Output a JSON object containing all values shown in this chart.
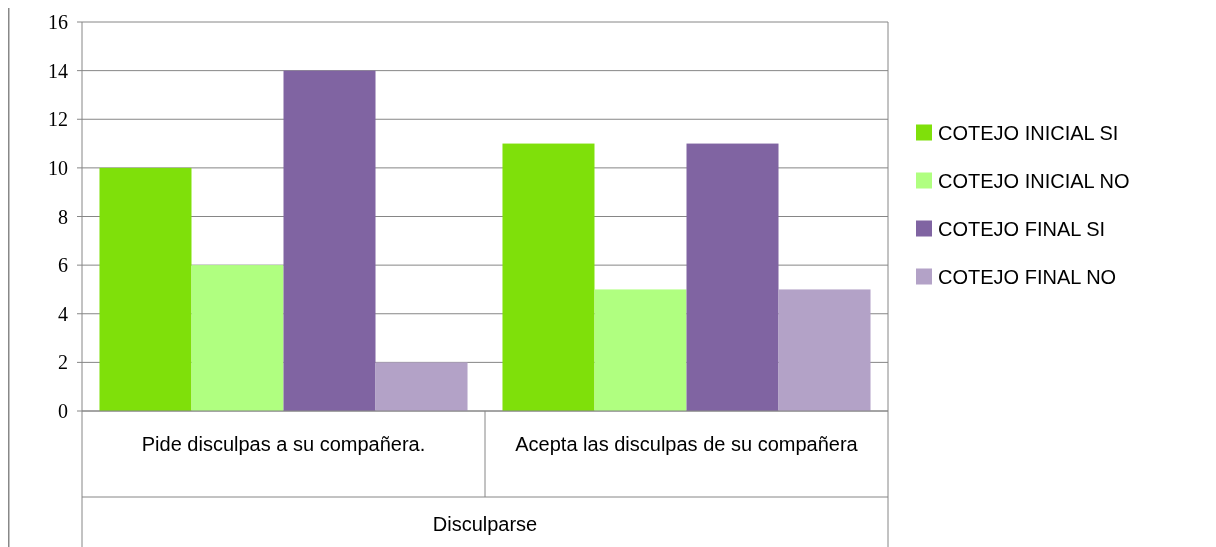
{
  "chart_data": {
    "type": "bar",
    "xlabel": "Disculparse",
    "categories": [
      "Pide disculpas a su compañera.",
      "Acepta las disculpas de su compañera"
    ],
    "series": [
      {
        "name": "COTEJO INICIAL SI",
        "color": "#7fe00a",
        "values": [
          10,
          11
        ]
      },
      {
        "name": "COTEJO INICIAL NO",
        "color": "#b0ff80",
        "values": [
          6,
          5
        ]
      },
      {
        "name": "COTEJO FINAL SI",
        "color": "#8064a2",
        "values": [
          14,
          11
        ]
      },
      {
        "name": "COTEJO FINAL NO",
        "color": "#b3a2c7",
        "values": [
          2,
          5
        ]
      }
    ],
    "ylim": [
      0,
      16
    ],
    "yticks": [
      0,
      2,
      4,
      6,
      8,
      10,
      12,
      14,
      16
    ],
    "grid": "y",
    "legend": "right"
  }
}
